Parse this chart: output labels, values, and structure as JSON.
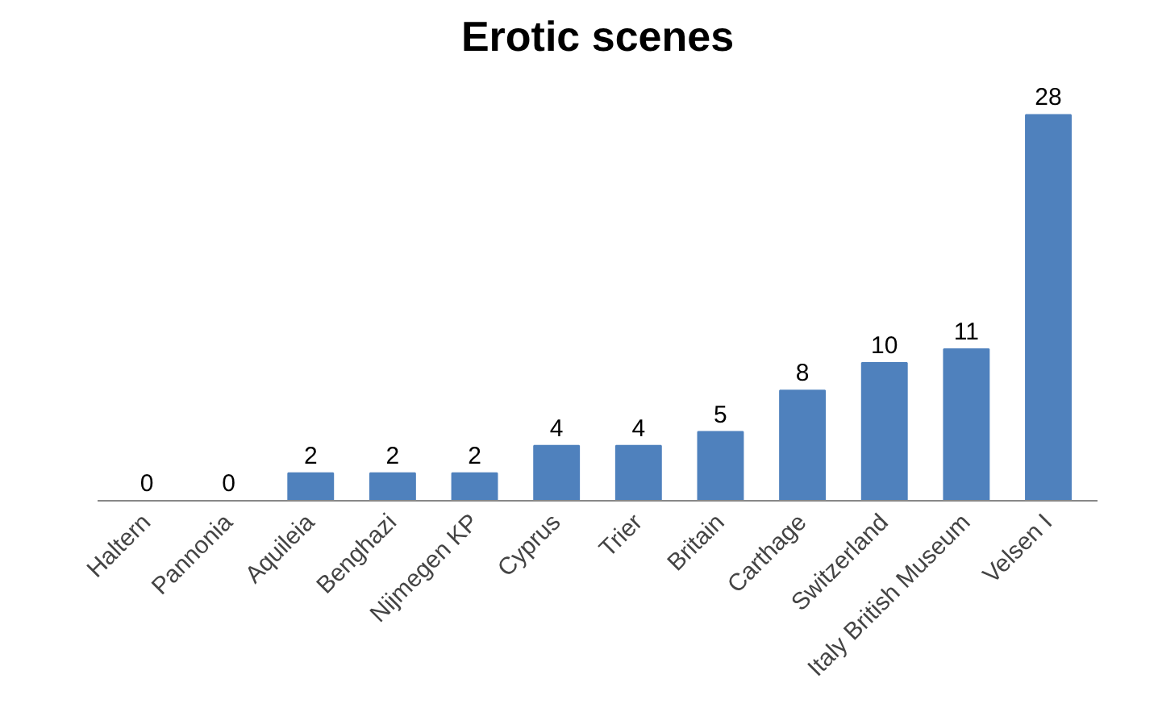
{
  "chart_data": {
    "type": "bar",
    "title": "Erotic scenes",
    "categories": [
      "Haltern",
      "Pannonia",
      "Aquileia",
      "Benghazi",
      "Nijmegen KP",
      "Cyprus",
      "Trier",
      "Britain",
      "Carthage",
      "Switzerland",
      "Italy British Museum",
      "Velsen I"
    ],
    "values": [
      0,
      0,
      2,
      2,
      2,
      4,
      4,
      5,
      8,
      10,
      11,
      28
    ],
    "color": "#4f81bd",
    "data_labels": true
  }
}
